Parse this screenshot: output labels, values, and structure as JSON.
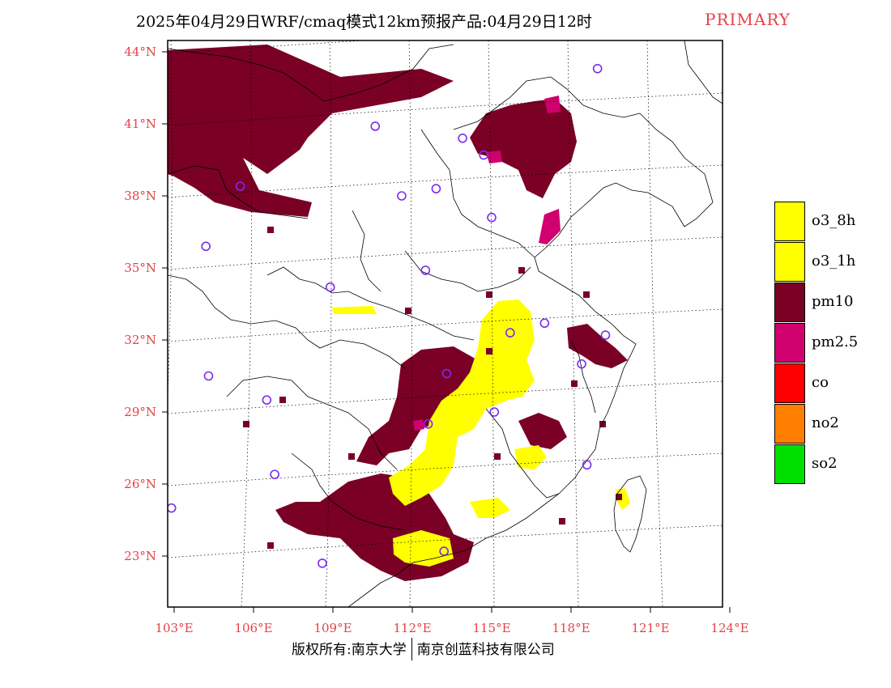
{
  "title": {
    "main": "2025年04月29日WRF/cmaq模式12km预报产品:04月29日12时",
    "tag": "PRIMARY"
  },
  "axes": {
    "lat_labels": [
      "44°N",
      "41°N",
      "38°N",
      "35°N",
      "32°N",
      "29°N",
      "26°N",
      "23°N"
    ],
    "lon_labels": [
      "103°E",
      "106°E",
      "109°E",
      "112°E",
      "115°E",
      "118°E",
      "121°E",
      "124°E"
    ]
  },
  "legend": {
    "items": [
      {
        "label": "o3_8h",
        "color": "#ffff00"
      },
      {
        "label": "o3_1h",
        "color": "#ffff00"
      },
      {
        "label": "pm10",
        "color": "#7a0026"
      },
      {
        "label": "pm2.5",
        "color": "#d0006e"
      },
      {
        "label": "co",
        "color": "#ff0000"
      },
      {
        "label": "no2",
        "color": "#ff8000"
      },
      {
        "label": "so2",
        "color": "#00e000"
      }
    ]
  },
  "footer": {
    "left": "版权所有:南京大学",
    "right": "南京创蓝科技有限公司"
  },
  "colors": {
    "pm10": "#7a0026",
    "pm25": "#d0006e",
    "o3": "#ffff00",
    "station": "#7a2cf0",
    "label_red": "#e8404a"
  },
  "stations": [
    {
      "lat": 43.3,
      "lon": 119.0
    },
    {
      "lat": 40.9,
      "lon": 110.6
    },
    {
      "lat": 40.4,
      "lon": 113.9
    },
    {
      "lat": 39.7,
      "lon": 114.7
    },
    {
      "lat": 38.4,
      "lon": 105.5
    },
    {
      "lat": 38.0,
      "lon": 111.6
    },
    {
      "lat": 38.3,
      "lon": 112.9
    },
    {
      "lat": 37.1,
      "lon": 115.0
    },
    {
      "lat": 35.9,
      "lon": 104.2
    },
    {
      "lat": 34.9,
      "lon": 112.5
    },
    {
      "lat": 34.2,
      "lon": 108.9
    },
    {
      "lat": 32.7,
      "lon": 117.0
    },
    {
      "lat": 32.3,
      "lon": 115.7
    },
    {
      "lat": 32.2,
      "lon": 119.3
    },
    {
      "lat": 31.0,
      "lon": 118.4
    },
    {
      "lat": 30.6,
      "lon": 113.3
    },
    {
      "lat": 30.5,
      "lon": 104.3
    },
    {
      "lat": 29.5,
      "lon": 106.5
    },
    {
      "lat": 29.0,
      "lon": 115.1
    },
    {
      "lat": 28.5,
      "lon": 112.6
    },
    {
      "lat": 26.8,
      "lon": 118.6
    },
    {
      "lat": 26.4,
      "lon": 106.8
    },
    {
      "lat": 25.0,
      "lon": 102.9
    },
    {
      "lat": 23.2,
      "lon": 113.2
    },
    {
      "lat": 22.7,
      "lon": 108.6
    }
  ]
}
